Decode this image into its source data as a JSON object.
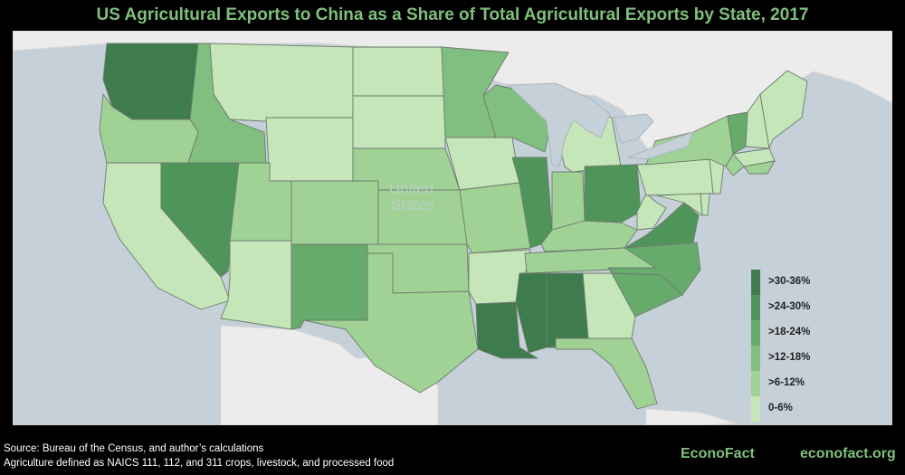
{
  "title": "US Agricultural Exports to China as a Share of Total Agricultural Exports by State, 2017",
  "map": {
    "country_label_line1": "United",
    "country_label_line2": "States",
    "colors": {
      "water": "#c6d0d8",
      "foreign_land": "#ececec",
      "state_border": "#6e7b6e"
    }
  },
  "legend": {
    "items": [
      {
        "label": ">30-36%",
        "color": "#3e7c4d"
      },
      {
        "label": ">24-30%",
        "color": "#4f955a"
      },
      {
        "label": ">18-24%",
        "color": "#67ab6c"
      },
      {
        "label": ">12-18%",
        "color": "#80bf7f"
      },
      {
        "label": ">6-12%",
        "color": "#a0d296"
      },
      {
        "label": "0-6%",
        "color": "#c5e6b9"
      }
    ]
  },
  "state_classes": {
    "WA": ">30-36%",
    "OR": ">6-12%",
    "ID": ">12-18%",
    "MT": "0-6%",
    "WY": "0-6%",
    "ND": "0-6%",
    "SD": "0-6%",
    "CA": "0-6%",
    "NV": ">24-30%",
    "UT": ">6-12%",
    "CO": ">6-12%",
    "NE": ">6-12%",
    "KS": ">6-12%",
    "AZ": "0-6%",
    "NM": ">18-24%",
    "TX": ">6-12%",
    "OK": ">6-12%",
    "MN": ">12-18%",
    "IA": "0-6%",
    "MO": ">6-12%",
    "AR": "0-6%",
    "LA": ">30-36%",
    "WI": ">12-18%",
    "IL": ">24-30%",
    "MS": ">30-36%",
    "MI": "0-6%",
    "IN": ">6-12%",
    "OH": ">24-30%",
    "KY": ">6-12%",
    "TN": ">6-12%",
    "AL": ">30-36%",
    "GA": "0-6%",
    "FL": ">6-12%",
    "SC": ">18-24%",
    "NC": ">18-24%",
    "VA": ">24-30%",
    "WV": "0-6%",
    "PA": "0-6%",
    "NY": ">6-12%",
    "VT": ">18-24%",
    "NH": "0-6%",
    "ME": "0-6%",
    "MA": "0-6%",
    "CT": ">6-12%",
    "RI": ">6-12%",
    "NJ": "0-6%",
    "DE": "0-6%",
    "MD": "0-6%"
  },
  "source": {
    "line1": "Source: Bureau of the Census, and author’s calculations",
    "line2": "Agriculture defined as NAICS 111, 112, and 311 crops, livestock, and processed food"
  },
  "footer": {
    "brand": "EconoFact",
    "site": "econofact.org"
  }
}
